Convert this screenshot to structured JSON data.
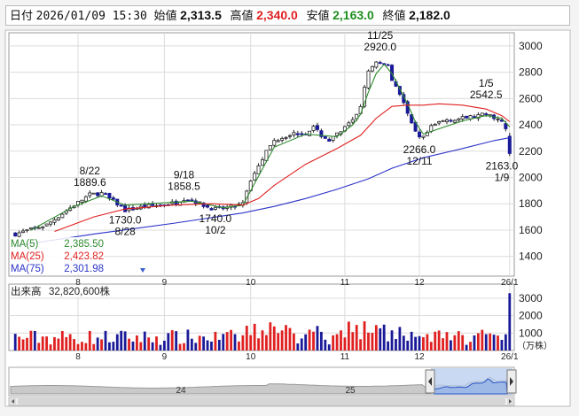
{
  "header": {
    "date_label": "日付",
    "datetime": "2026/01/09 15:30",
    "open_label": "始値",
    "open": "2,313.5",
    "high_label": "高値",
    "high": "2,340.0",
    "low_label": "安値",
    "low": "2,163.0",
    "close_label": "終値",
    "close": "2,182.0"
  },
  "legend": {
    "ma5_label": "MA(5)",
    "ma5_value": "2,385.50",
    "ma25_label": "MA(25)",
    "ma25_value": "2,423.82",
    "ma75_label": "MA(75)",
    "ma75_value": "2,301.98"
  },
  "volume_header": {
    "label": "出来高",
    "value": "32,820,600株"
  },
  "volume_unit": "（万株）",
  "navigator": {
    "labels": [
      "24",
      "25"
    ]
  },
  "colors": {
    "ma5": "#2e8b2e",
    "ma25": "#e02020",
    "ma75": "#2b34c8",
    "up_bar": "#e02020",
    "down_bar": "#1a1a99",
    "high_value": "#e02020",
    "low_value": "#1f8f1f"
  },
  "chart_data": {
    "type": "candlestick",
    "price_axis": {
      "ylim": [
        1250,
        3100
      ],
      "ticks": [
        1400,
        1600,
        1800,
        2000,
        2200,
        2400,
        2600,
        2800,
        3000
      ]
    },
    "volume_axis": {
      "ylim": [
        0,
        3600
      ],
      "ticks": [
        1000,
        2000,
        3000
      ]
    },
    "x_ticks": [
      "8",
      "9",
      "10",
      "11",
      "12",
      "26/1"
    ],
    "annotations": [
      {
        "date": "8/22",
        "price": "1889.6",
        "kind": "high"
      },
      {
        "date": "8/28",
        "price": "1730.0",
        "kind": "low"
      },
      {
        "date": "9/18",
        "price": "1858.5",
        "kind": "high"
      },
      {
        "date": "10/2",
        "price": "1740.0",
        "kind": "low"
      },
      {
        "date": "11/25",
        "price": "2920.0",
        "kind": "high"
      },
      {
        "date": "12/11",
        "price": "2266.0",
        "kind": "low"
      },
      {
        "date": "1/5",
        "price": "2542.5",
        "kind": "high"
      },
      {
        "date": "1/9",
        "price": "2163.0",
        "kind": "low"
      }
    ],
    "close_path": [
      [
        0,
        1570
      ],
      [
        8,
        1640
      ],
      [
        15,
        1790
      ],
      [
        19,
        1870
      ],
      [
        22,
        1880
      ],
      [
        26,
        1800
      ],
      [
        28,
        1750
      ],
      [
        33,
        1780
      ],
      [
        37,
        1790
      ],
      [
        41,
        1810
      ],
      [
        43,
        1840
      ],
      [
        45,
        1830
      ],
      [
        49,
        1775
      ],
      [
        51,
        1760
      ],
      [
        53,
        1765
      ],
      [
        56,
        1780
      ],
      [
        58,
        1800
      ],
      [
        60,
        1980
      ],
      [
        62,
        2100
      ],
      [
        64,
        2200
      ],
      [
        66,
        2280
      ],
      [
        70,
        2330
      ],
      [
        74,
        2340
      ],
      [
        76,
        2380
      ],
      [
        78,
        2320
      ],
      [
        80,
        2280
      ],
      [
        83,
        2350
      ],
      [
        86,
        2430
      ],
      [
        88,
        2540
      ],
      [
        89,
        2700
      ],
      [
        90,
        2800
      ],
      [
        92,
        2870
      ],
      [
        94,
        2870
      ],
      [
        95,
        2850
      ],
      [
        96,
        2750
      ],
      [
        98,
        2640
      ],
      [
        99,
        2560
      ],
      [
        100,
        2480
      ],
      [
        101,
        2400
      ],
      [
        102,
        2340
      ],
      [
        103,
        2300
      ],
      [
        104,
        2300
      ],
      [
        106,
        2380
      ],
      [
        108,
        2420
      ],
      [
        110,
        2440
      ],
      [
        112,
        2440
      ],
      [
        114,
        2450
      ],
      [
        116,
        2460
      ],
      [
        118,
        2470
      ],
      [
        120,
        2480
      ],
      [
        122,
        2460
      ],
      [
        124,
        2420
      ],
      [
        125,
        2380
      ],
      [
        126,
        2200
      ]
    ],
    "final_candles": [
      {
        "open": 2410,
        "high": 2430,
        "low": 2350,
        "close": 2370
      },
      {
        "open": 2313.5,
        "high": 2340.0,
        "low": 2163.0,
        "close": 2182.0
      }
    ],
    "final_volume": 3282,
    "ma5": [
      [
        4,
        1600
      ],
      [
        15,
        1780
      ],
      [
        22,
        1860
      ],
      [
        28,
        1790
      ],
      [
        45,
        1820
      ],
      [
        53,
        1770
      ],
      [
        58,
        1790
      ],
      [
        62,
        2010
      ],
      [
        66,
        2230
      ],
      [
        74,
        2330
      ],
      [
        78,
        2320
      ],
      [
        82,
        2310
      ],
      [
        86,
        2400
      ],
      [
        88,
        2480
      ],
      [
        90,
        2650
      ],
      [
        92,
        2790
      ],
      [
        94,
        2860
      ],
      [
        96,
        2790
      ],
      [
        100,
        2560
      ],
      [
        102,
        2420
      ],
      [
        104,
        2330
      ],
      [
        108,
        2370
      ],
      [
        114,
        2430
      ],
      [
        120,
        2470
      ],
      [
        124,
        2450
      ],
      [
        126,
        2385.5
      ]
    ],
    "ma25": [
      [
        10,
        1590
      ],
      [
        20,
        1700
      ],
      [
        28,
        1760
      ],
      [
        40,
        1790
      ],
      [
        50,
        1800
      ],
      [
        58,
        1790
      ],
      [
        62,
        1840
      ],
      [
        66,
        1940
      ],
      [
        74,
        2100
      ],
      [
        82,
        2220
      ],
      [
        88,
        2320
      ],
      [
        92,
        2450
      ],
      [
        96,
        2540
      ],
      [
        100,
        2550
      ],
      [
        104,
        2550
      ],
      [
        108,
        2560
      ],
      [
        114,
        2550
      ],
      [
        120,
        2520
      ],
      [
        124,
        2470
      ],
      [
        126,
        2423.82
      ]
    ],
    "ma75": [
      [
        0,
        1480
      ],
      [
        20,
        1570
      ],
      [
        40,
        1650
      ],
      [
        58,
        1730
      ],
      [
        66,
        1780
      ],
      [
        74,
        1840
      ],
      [
        82,
        1910
      ],
      [
        90,
        1990
      ],
      [
        96,
        2070
      ],
      [
        104,
        2150
      ],
      [
        114,
        2220
      ],
      [
        122,
        2280
      ],
      [
        126,
        2301.98
      ]
    ]
  }
}
